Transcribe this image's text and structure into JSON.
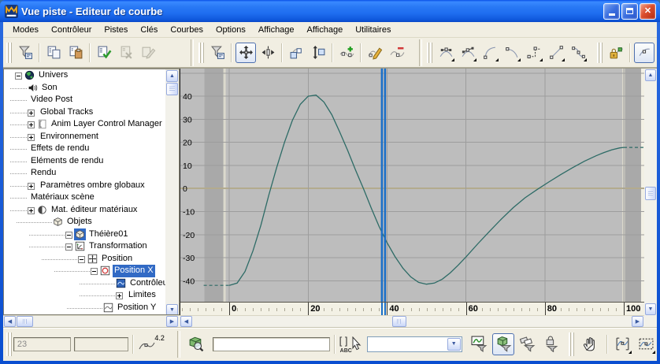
{
  "window": {
    "title": "Vue piste - Editeur de courbe",
    "controls": {
      "minimize": "minimize",
      "maximize": "maximize",
      "close": "close"
    }
  },
  "colors": {
    "selection": "#316ac5",
    "curve": "#2d6b66",
    "time_slider": "#1a6fc8",
    "plot_background": "#bdbdbd",
    "out_of_range": "#a9a9a9",
    "grid_line": "#9d9d9d",
    "grid_zero_line": "#b3ab8e",
    "titlebar_blue": "#2272f2"
  },
  "menu": {
    "items": [
      "Modes",
      "Contrôleur",
      "Pistes",
      "Clés",
      "Courbes",
      "Options",
      "Affichage",
      "Affichage",
      "Utilitaires"
    ]
  },
  "toolbar": {
    "groups": [
      {
        "items": [
          {
            "t": "grip"
          },
          {
            "t": "btn",
            "icon": "filter",
            "name": "filters-button"
          },
          {
            "t": "sep"
          },
          {
            "t": "btn",
            "icon": "copy",
            "name": "copy-controller-button"
          },
          {
            "t": "btn",
            "icon": "paste",
            "name": "paste-controller-button"
          },
          {
            "t": "sep"
          },
          {
            "t": "btn",
            "icon": "assign",
            "name": "assign-controller-button"
          },
          {
            "t": "btn",
            "icon": "delete",
            "name": "delete-controller-button",
            "disabled": true
          },
          {
            "t": "btn",
            "icon": "unique",
            "name": "make-controller-unique-button",
            "disabled": true
          }
        ]
      },
      {
        "items": [
          {
            "t": "space",
            "w": 36
          },
          {
            "t": "break"
          },
          {
            "t": "grip"
          },
          {
            "t": "btn",
            "icon": "filter",
            "name": "filters-button-2"
          },
          {
            "t": "sep"
          },
          {
            "t": "btn",
            "icon": "move",
            "name": "move-keys-button",
            "pressed": true
          },
          {
            "t": "btn",
            "icon": "slide",
            "name": "slide-keys-button"
          },
          {
            "t": "sep"
          },
          {
            "t": "btn",
            "icon": "scalekeys",
            "name": "scale-keys-button"
          },
          {
            "t": "btn",
            "icon": "scalevalues",
            "name": "scale-values-button"
          },
          {
            "t": "sep"
          },
          {
            "t": "btn",
            "icon": "addkeys",
            "name": "add-keys-button"
          },
          {
            "t": "sep"
          },
          {
            "t": "btn",
            "icon": "draw",
            "name": "draw-curves-button"
          },
          {
            "t": "btn",
            "icon": "reduce",
            "name": "reduce-keys-button"
          }
        ]
      },
      {
        "items": [
          {
            "t": "space",
            "w": 10
          },
          {
            "t": "break"
          },
          {
            "t": "grip"
          },
          {
            "t": "btn",
            "icon": "tanauto",
            "name": "set-tangents-auto-button",
            "flyout": true
          },
          {
            "t": "btn",
            "icon": "tancustom",
            "name": "set-tangents-custom-button",
            "flyout": true
          },
          {
            "t": "btn",
            "icon": "tanfast",
            "name": "set-tangents-fast-button",
            "flyout": true
          },
          {
            "t": "btn",
            "icon": "tanslow",
            "name": "set-tangents-slow-button",
            "flyout": true
          },
          {
            "t": "btn",
            "icon": "tanstep",
            "name": "set-tangents-step-button",
            "flyout": true
          },
          {
            "t": "btn",
            "icon": "tanlinear",
            "name": "set-tangents-linear-button",
            "flyout": true
          },
          {
            "t": "btn",
            "icon": "tansmooth",
            "name": "set-tangents-smooth-button",
            "flyout": true
          }
        ]
      },
      {
        "items": [
          {
            "t": "space",
            "w": 8
          },
          {
            "t": "grip"
          },
          {
            "t": "btn",
            "icon": "lock",
            "name": "lock-tangents-button"
          },
          {
            "t": "sep"
          },
          {
            "t": "btn",
            "icon": "partial",
            "name": "clipped-edge-button",
            "pressed": true
          }
        ]
      }
    ]
  },
  "tree": {
    "items": [
      {
        "label": "Univers",
        "level": 0,
        "expander": "minus",
        "icon": "globe"
      },
      {
        "label": "Son",
        "level": 1,
        "expander": null,
        "icon": "speaker"
      },
      {
        "label": "Video Post",
        "level": 1,
        "expander": null,
        "icon": null
      },
      {
        "label": "Global Tracks",
        "level": 1,
        "expander": "plus",
        "icon": null
      },
      {
        "label": "Anim Layer Control Manager",
        "level": 1,
        "expander": "plus",
        "icon": "bracket"
      },
      {
        "label": "Environnement",
        "level": 1,
        "expander": "plus",
        "icon": null
      },
      {
        "label": "Effets de rendu",
        "level": 1,
        "expander": null,
        "icon": null
      },
      {
        "label": "Eléments de rendu",
        "level": 1,
        "expander": null,
        "icon": null
      },
      {
        "label": "Rendu",
        "level": 1,
        "expander": null,
        "icon": null
      },
      {
        "label": "Paramètres ombre globaux",
        "level": 1,
        "expander": "plus",
        "icon": null
      },
      {
        "label": "Matériaux scène",
        "level": 1,
        "expander": null,
        "icon": null
      },
      {
        "label": "Mat. éditeur matériaux",
        "level": 1,
        "expander": "plus",
        "icon": "sphere"
      },
      {
        "label": "Objets",
        "level": 3,
        "expander": null,
        "icon": "cube"
      },
      {
        "label": "Théière01",
        "level": 4,
        "expander": "minus",
        "icon": "cube",
        "icon_selected": true
      },
      {
        "label": "Transformation",
        "level": 4,
        "expander": "minus",
        "icon": "transform"
      },
      {
        "label": "Position",
        "level": 5,
        "expander": "minus",
        "icon": "position"
      },
      {
        "label": "Position X",
        "level": 6,
        "expander": "minus",
        "icon": "positionx",
        "selected": true
      },
      {
        "label": "Contrôleur",
        "level": 8,
        "expander": null,
        "icon": "controller"
      },
      {
        "label": "Limites",
        "level": 8,
        "expander": "plus",
        "icon": null
      },
      {
        "label": "Position Y",
        "level": 7,
        "expander": null,
        "icon": "positiony"
      }
    ]
  },
  "chart_data": {
    "type": "line",
    "title": "",
    "x_ticks": [
      0,
      20,
      40,
      60,
      80,
      100
    ],
    "y_ticks": [
      40,
      30,
      20,
      10,
      0,
      -10,
      -20,
      -30,
      -40
    ],
    "x_visible": [
      -12.4,
      105.2
    ],
    "y_visible": [
      -49.1,
      52.0
    ],
    "animation_range": [
      0,
      100
    ],
    "current_time": 38.8,
    "grid": true,
    "legend_position": "none",
    "series": [
      {
        "name": "Position X",
        "color": "#2d6b66",
        "points": [
          [
            0,
            -42
          ],
          [
            2,
            -41
          ],
          [
            4,
            -36
          ],
          [
            6,
            -27
          ],
          [
            8,
            -16
          ],
          [
            10,
            -3
          ],
          [
            12,
            9
          ],
          [
            14,
            20
          ],
          [
            16,
            29.5
          ],
          [
            18,
            36.5
          ],
          [
            20,
            40
          ],
          [
            22,
            40.5
          ],
          [
            24,
            37.5
          ],
          [
            26,
            32
          ],
          [
            28,
            24.5
          ],
          [
            30,
            16.5
          ],
          [
            32,
            8
          ],
          [
            34,
            0
          ],
          [
            36,
            -8.5
          ],
          [
            38,
            -16.5
          ],
          [
            40,
            -23.5
          ],
          [
            42,
            -29.5
          ],
          [
            44,
            -34.5
          ],
          [
            46,
            -38.3
          ],
          [
            48,
            -40.7
          ],
          [
            50,
            -41.5
          ],
          [
            52,
            -41
          ],
          [
            54,
            -39.3
          ],
          [
            56,
            -36.6
          ],
          [
            58,
            -33.3
          ],
          [
            60,
            -29.7
          ],
          [
            63,
            -24
          ],
          [
            66,
            -18.5
          ],
          [
            69,
            -13.2
          ],
          [
            72,
            -8.3
          ],
          [
            75,
            -4
          ],
          [
            78,
            -0.5
          ],
          [
            81,
            2.8
          ],
          [
            84,
            6
          ],
          [
            87,
            9
          ],
          [
            90,
            11.8
          ],
          [
            93,
            14.2
          ],
          [
            95,
            15.6
          ],
          [
            97,
            16.8
          ],
          [
            99,
            17.6
          ],
          [
            100,
            17.8
          ]
        ]
      }
    ],
    "out_of_range_extensions": [
      {
        "points": [
          [
            -6.5,
            -42
          ],
          [
            0,
            -42
          ]
        ],
        "style": "dashed"
      },
      {
        "points": [
          [
            100,
            17.8
          ],
          [
            109,
            17.8
          ]
        ],
        "style": "dashed"
      }
    ]
  },
  "status": {
    "key_time_value": "23",
    "key_value_value": "",
    "stats_label": "4.2",
    "track_name_value": "",
    "select_icon_brackets": "[ ]",
    "select_icon_abc": "ABC",
    "track_set_value": ""
  }
}
